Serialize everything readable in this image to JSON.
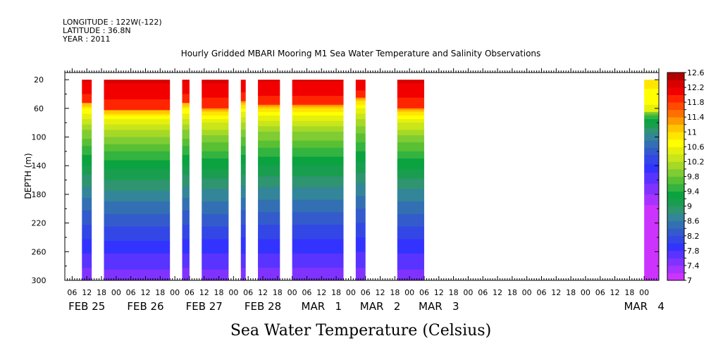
{
  "header": {
    "longitude": "LONGITUDE : 122W(-122)",
    "latitude": "LATITUDE : 36.8N",
    "year": "YEAR : 2011"
  },
  "chart_data": {
    "type": "heatmap",
    "title": "Hourly Gridded MBARI Mooring M1 Sea Water Temperature and Salinity Observations",
    "subtitle": "Sea Water Temperature (Celsius)",
    "ylabel": "DEPTH (m)",
    "ylim": [
      300,
      10
    ],
    "xlim": [
      3,
      246
    ],
    "y_ticks": [
      20,
      60,
      100,
      140,
      180,
      220,
      260,
      300
    ],
    "x_hour_ticks": [
      {
        "x": 6,
        "label": "06"
      },
      {
        "x": 12,
        "label": "12"
      },
      {
        "x": 18,
        "label": "18"
      },
      {
        "x": 24,
        "label": "00"
      },
      {
        "x": 30,
        "label": "06"
      },
      {
        "x": 36,
        "label": "12"
      },
      {
        "x": 42,
        "label": "18"
      },
      {
        "x": 48,
        "label": "00"
      },
      {
        "x": 54,
        "label": "06"
      },
      {
        "x": 60,
        "label": "12"
      },
      {
        "x": 66,
        "label": "18"
      },
      {
        "x": 72,
        "label": "00"
      },
      {
        "x": 78,
        "label": "06"
      },
      {
        "x": 84,
        "label": "12"
      },
      {
        "x": 90,
        "label": "18"
      },
      {
        "x": 96,
        "label": "00"
      },
      {
        "x": 102,
        "label": "06"
      },
      {
        "x": 108,
        "label": "12"
      },
      {
        "x": 114,
        "label": "18"
      },
      {
        "x": 120,
        "label": "00"
      },
      {
        "x": 126,
        "label": "06"
      },
      {
        "x": 132,
        "label": "12"
      },
      {
        "x": 138,
        "label": "18"
      },
      {
        "x": 144,
        "label": "00"
      },
      {
        "x": 150,
        "label": "06"
      },
      {
        "x": 156,
        "label": "12"
      },
      {
        "x": 162,
        "label": "18"
      },
      {
        "x": 168,
        "label": "00"
      },
      {
        "x": 174,
        "label": "06"
      },
      {
        "x": 180,
        "label": "12"
      },
      {
        "x": 186,
        "label": "18"
      },
      {
        "x": 192,
        "label": "00"
      },
      {
        "x": 198,
        "label": "06"
      },
      {
        "x": 204,
        "label": "12"
      },
      {
        "x": 210,
        "label": "18"
      },
      {
        "x": 216,
        "label": "00"
      },
      {
        "x": 222,
        "label": "06"
      },
      {
        "x": 228,
        "label": "12"
      },
      {
        "x": 234,
        "label": "18"
      },
      {
        "x": 240,
        "label": "00"
      }
    ],
    "x_day_labels": [
      {
        "x": 12,
        "label": "FEB 25"
      },
      {
        "x": 36,
        "label": "FEB 26"
      },
      {
        "x": 60,
        "label": "FEB 27"
      },
      {
        "x": 84,
        "label": "FEB 28"
      },
      {
        "x": 108,
        "label": "MAR   1"
      },
      {
        "x": 132,
        "label": "MAR   2"
      },
      {
        "x": 156,
        "label": "MAR   3"
      },
      {
        "x": 240,
        "label": "MAR   4"
      }
    ],
    "data_segments": [
      {
        "x_start": 10,
        "x_end": 14,
        "mixed_depth": 52
      },
      {
        "x_start": 19,
        "x_end": 46,
        "mixed_depth": 62
      },
      {
        "x_start": 51,
        "x_end": 54,
        "mixed_depth": 52
      },
      {
        "x_start": 59,
        "x_end": 70,
        "mixed_depth": 60
      },
      {
        "x_start": 75,
        "x_end": 77,
        "mixed_depth": 50
      },
      {
        "x_start": 82,
        "x_end": 91,
        "mixed_depth": 55
      },
      {
        "x_start": 96,
        "x_end": 117,
        "mixed_depth": 55
      },
      {
        "x_start": 122,
        "x_end": 126,
        "mixed_depth": 45
      },
      {
        "x_start": 139,
        "x_end": 150,
        "mixed_depth": 60
      },
      {
        "x_start": 240,
        "x_end": 246,
        "mixed_depth": 65,
        "surface_temp": 11.1
      }
    ],
    "colorbar": {
      "levels": [
        7,
        7.2,
        7.4,
        7.6,
        7.8,
        8,
        8.2,
        8.4,
        8.6,
        8.8,
        9,
        9.2,
        9.4,
        9.6,
        9.8,
        10,
        10.2,
        10.4,
        10.6,
        10.8,
        11,
        11.2,
        11.4,
        11.6,
        11.8,
        12,
        12.2,
        12.4,
        12.6
      ],
      "labels": [
        "7",
        "7.4",
        "7.8",
        "8.2",
        "8.6",
        "9",
        "9.4",
        "9.8",
        "10.2",
        "10.6",
        "11",
        "11.4",
        "11.8",
        "12.2",
        "12.6"
      ],
      "colors": [
        "#cc33ff",
        "#a633ff",
        "#8033ff",
        "#5933ff",
        "#3333ff",
        "#3347e6",
        "#335bcc",
        "#3370b3",
        "#338599",
        "#2f9470",
        "#199e50",
        "#0aa340",
        "#33b340",
        "#59c033",
        "#80cc33",
        "#a6d926",
        "#c8e619",
        "#e6f00d",
        "#ffff00",
        "#ffe600",
        "#ffc600",
        "#ff9a00",
        "#ff7000",
        "#ff4a00",
        "#ff2500",
        "#f20000",
        "#d90000",
        "#b30000"
      ]
    }
  }
}
